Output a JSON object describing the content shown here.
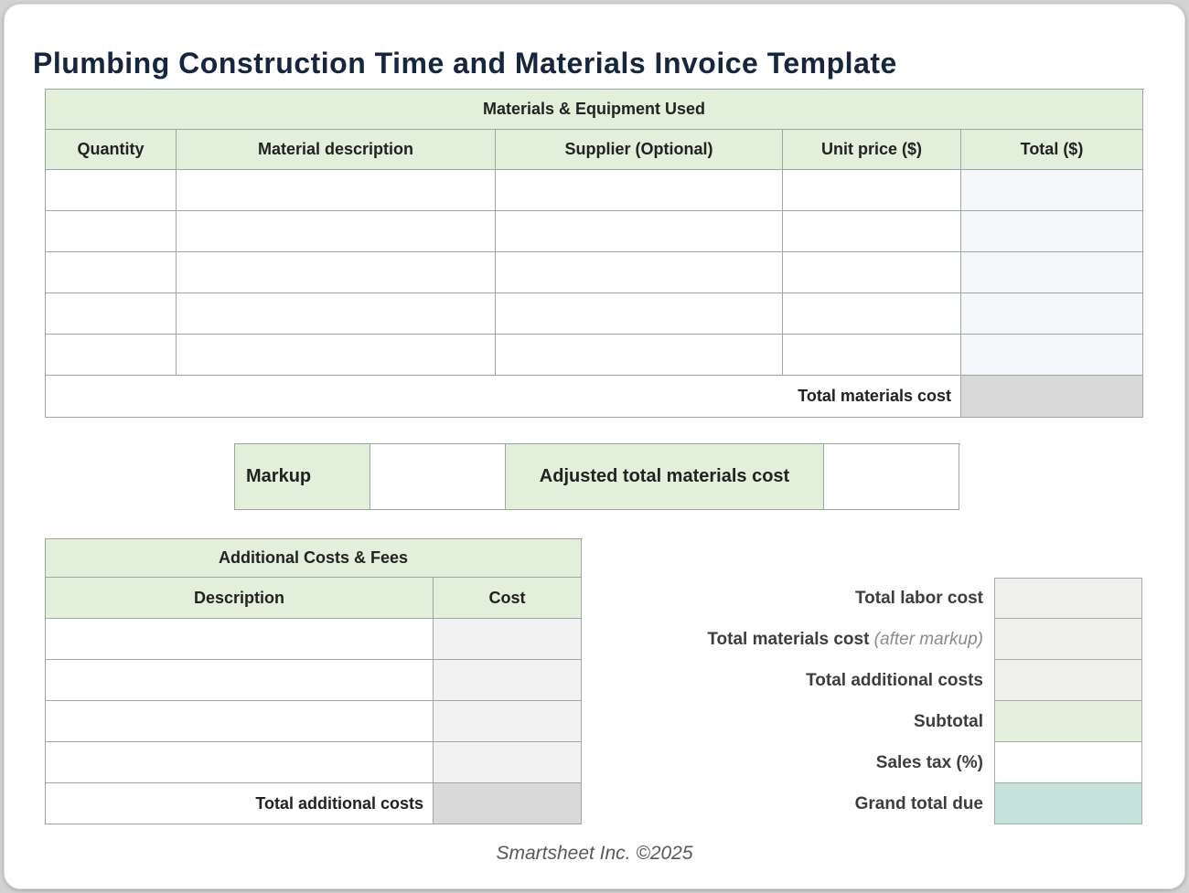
{
  "page": {
    "title": "Plumbing Construction Time and Materials Invoice Template",
    "footer": "Smartsheet Inc. ©2025"
  },
  "colors": {
    "header_green": "#e2efda",
    "header_text_green": "#4d5c4d",
    "title_navy": "#17263e",
    "total_cell_gray": "#d9d9d9",
    "materials_total_col_tint": "#f3f7f9",
    "additional_cost_col_tint": "#f2f2f2",
    "summary_value_gray": "#f0f1ee",
    "subtotal_green": "#e4f0dd",
    "grand_total_teal": "#c5e2db",
    "sales_tax_white": "#ffffff"
  },
  "materials_table": {
    "section_title": "Materials & Equipment Used",
    "columns": [
      "Quantity",
      "Material description",
      "Supplier (Optional)",
      "Unit price ($)",
      "Total ($)"
    ],
    "empty_row_count": 5,
    "total_label": "Total materials cost",
    "total_value": ""
  },
  "markup_bar": {
    "markup_label": "Markup",
    "markup_value": "",
    "adjusted_label": "Adjusted total materials cost",
    "adjusted_value": ""
  },
  "additional_table": {
    "section_title": "Additional Costs & Fees",
    "columns": [
      "Description",
      "Cost"
    ],
    "empty_row_count": 4,
    "total_label": "Total additional costs",
    "total_value": ""
  },
  "summary": {
    "rows": [
      {
        "label": "Total labor cost",
        "note": "",
        "value": "",
        "bg": "#f0f1ee",
        "input": false
      },
      {
        "label": "Total materials cost",
        "note": "(after markup)",
        "value": "",
        "bg": "#f0f1ee",
        "input": false
      },
      {
        "label": "Total additional costs",
        "note": "",
        "value": "",
        "bg": "#f0f1ee",
        "input": false
      },
      {
        "label": "Subtotal",
        "note": "",
        "value": "",
        "bg": "#e4f0dd",
        "input": false
      },
      {
        "label": "Sales tax (%)",
        "note": "",
        "value": "",
        "bg": "#ffffff",
        "input": true
      },
      {
        "label": "Grand total due",
        "note": "",
        "value": "",
        "bg": "#c5e2db",
        "input": false
      }
    ]
  }
}
